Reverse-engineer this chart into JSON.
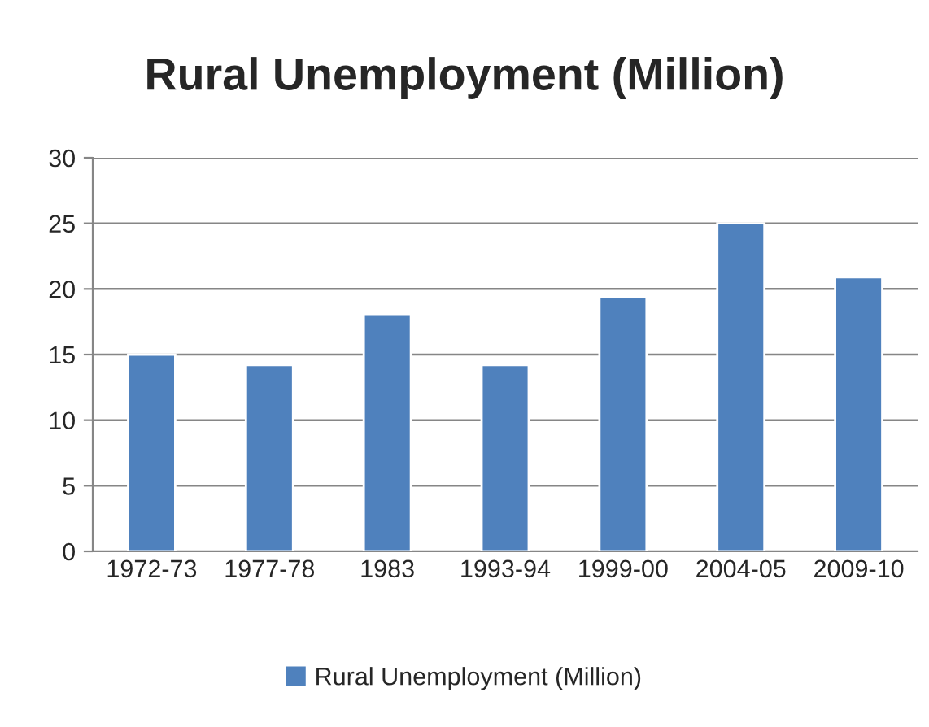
{
  "chart_data": {
    "type": "bar",
    "title": "Rural Unemployment (Million)",
    "categories": [
      "1972-73",
      "1977-78",
      "1983",
      "1993-94",
      "1999-00",
      "2004-05",
      "2009-10"
    ],
    "series": [
      {
        "name": "Rural Unemployment (Million)",
        "color": "#4f81bd",
        "values": [
          15.0,
          14.2,
          18.1,
          14.2,
          19.4,
          25.0,
          20.9
        ]
      }
    ],
    "ylim": [
      0,
      30
    ],
    "yticks": [
      0,
      5,
      10,
      15,
      20,
      25,
      30
    ],
    "grid": "y",
    "legend": "bottom"
  }
}
